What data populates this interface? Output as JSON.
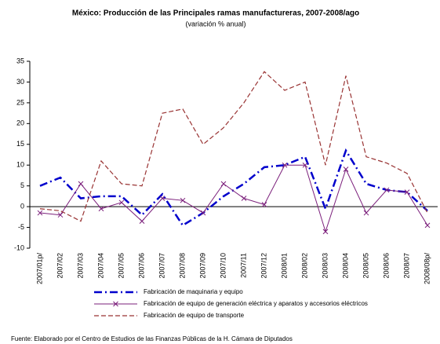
{
  "chart_data": {
    "type": "line",
    "title": "México: Producción de las Principales ramas manufactureras, 2007-2008/ago",
    "subtitle": "(variación % anual)",
    "categories": [
      "2007/01p/",
      "2007/02",
      "2007/03",
      "2007/04",
      "2007/05",
      "2007/06",
      "2007/07",
      "2007/08",
      "2007/09",
      "2007/10",
      "2007/11",
      "2007/12",
      "2008/01",
      "2008/02",
      "2008/03",
      "2008/04",
      "2008/05",
      "2008/06",
      "2008/07",
      "2008/08p/"
    ],
    "series": [
      {
        "name": "Fabricación de maquinaria y equipo",
        "color": "#0000cc",
        "values": [
          5,
          7,
          2,
          2.5,
          2.5,
          -2,
          3,
          -4.5,
          -1.5,
          2.5,
          5.5,
          9.5,
          10,
          12,
          -0.5,
          13.5,
          5.5,
          4,
          3.5,
          -1
        ]
      },
      {
        "name": "Fabricación de equipo de generación eléctrica y aparatos y accesorios eléctricos",
        "color": "#7b1f7b",
        "values": [
          -1.5,
          -2,
          5.5,
          -0.5,
          1,
          -3.5,
          2,
          1.5,
          -1.5,
          5.5,
          2,
          0.5,
          10,
          10,
          -6,
          9,
          -1.5,
          4,
          3.5,
          -4.5
        ]
      },
      {
        "name": "Fabricación de equipo de transporte",
        "color": "#993333",
        "values": [
          -0.5,
          -1,
          -3.5,
          11,
          5.5,
          5,
          22.5,
          23.5,
          15,
          19,
          25,
          32.5,
          28,
          30,
          10,
          31.5,
          12,
          10.5,
          8,
          -1.5
        ]
      }
    ],
    "ylim": [
      -10,
      35
    ],
    "yticks": [
      -10,
      -5,
      0,
      5,
      10,
      15,
      20,
      25,
      30,
      35
    ],
    "source": "Fuente: Elaborado por el Centro de Estudios de las Finanzas Públicas de la H. Cámara de Diputados"
  }
}
